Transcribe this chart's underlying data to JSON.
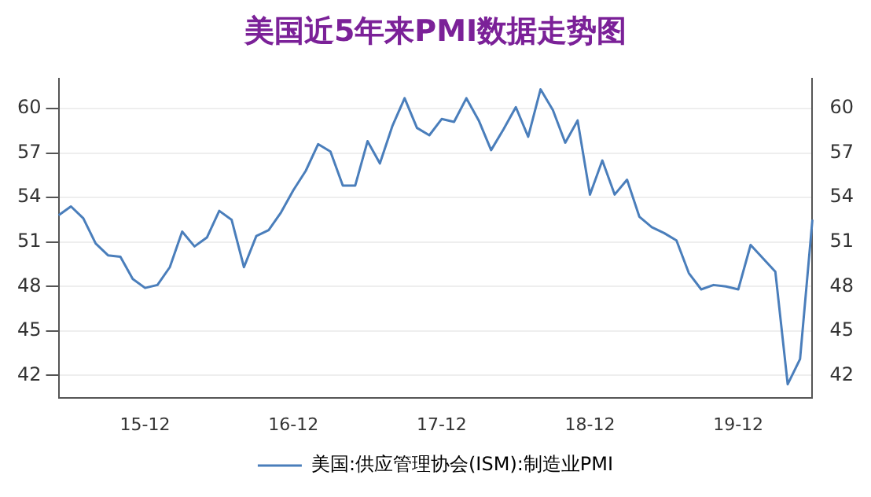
{
  "chart_data": {
    "type": "line",
    "title": "美国近5年来PMI数据走势图",
    "categories": [
      null,
      null,
      null,
      null,
      null,
      null,
      null,
      "15-12",
      null,
      null,
      null,
      null,
      null,
      null,
      null,
      null,
      null,
      null,
      null,
      "16-12",
      null,
      null,
      null,
      null,
      null,
      null,
      null,
      null,
      null,
      null,
      null,
      "17-12",
      null,
      null,
      null,
      null,
      null,
      null,
      null,
      null,
      null,
      null,
      null,
      "18-12",
      null,
      null,
      null,
      null,
      null,
      null,
      null,
      null,
      null,
      null,
      null,
      "19-12",
      null,
      null,
      null,
      null,
      null,
      null
    ],
    "series": [
      {
        "name": "美国:供应管理协会(ISM):制造业PMI",
        "color": "#4a7ebb",
        "values": [
          52.8,
          53.4,
          52.6,
          50.9,
          50.1,
          50.0,
          48.5,
          47.9,
          48.1,
          49.3,
          51.7,
          50.7,
          51.3,
          53.1,
          52.5,
          49.3,
          51.4,
          51.8,
          53.0,
          54.5,
          55.8,
          57.6,
          57.1,
          54.8,
          54.8,
          57.8,
          56.3,
          58.8,
          60.7,
          58.7,
          58.2,
          59.3,
          59.1,
          60.7,
          59.2,
          57.2,
          58.6,
          60.1,
          58.1,
          61.3,
          59.9,
          57.7,
          59.2,
          54.2,
          56.5,
          54.2,
          55.2,
          52.7,
          52.0,
          51.6,
          51.1,
          48.9,
          47.8,
          48.1,
          48.0,
          47.8,
          50.8,
          49.9,
          49.0,
          41.4,
          43.1,
          52.5
        ]
      }
    ],
    "ylim": [
      40.5,
      62
    ],
    "yticks": [
      42,
      45,
      48,
      51,
      54,
      57,
      60
    ],
    "y2lim": [
      40.5,
      62
    ],
    "y2ticks": [
      42,
      45,
      48,
      51,
      54,
      57,
      60
    ],
    "grid": "y",
    "legend": "bottom",
    "marker": "none",
    "line_style": "solid"
  }
}
